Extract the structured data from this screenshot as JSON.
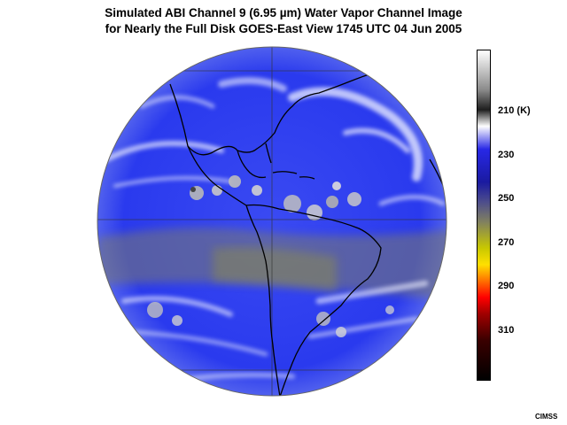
{
  "title": {
    "line1": "Simulated ABI Channel 9 (6.95 µm) Water Vapor Channel Image",
    "line2": "for Nearly the Full Disk GOES-East View  1745 UTC  04 Jun 2005"
  },
  "colorbar": {
    "ticks": [
      {
        "value": 210,
        "label": "210 (K)"
      },
      {
        "value": 230,
        "label": "230"
      },
      {
        "value": 250,
        "label": "250"
      },
      {
        "value": 270,
        "label": "270"
      },
      {
        "value": 290,
        "label": "290"
      },
      {
        "value": 310,
        "label": "310"
      }
    ],
    "colors": [
      "#ffffff",
      "#8a8a8a",
      "#1e1e1e",
      "#ffffff",
      "#2828e6",
      "#1a1aa0",
      "#4d4d8c",
      "#808060",
      "#c8c800",
      "#ffe000",
      "#ff7000",
      "#ff0000",
      "#a00000",
      "#3a0000",
      "#000000"
    ]
  },
  "credit": "CIMSS",
  "colors": {
    "ocean_blue": "#1f2ff0",
    "moist_white": "#e8ecff",
    "dry_olive": "#8c8c4c",
    "coast": "#000000"
  }
}
